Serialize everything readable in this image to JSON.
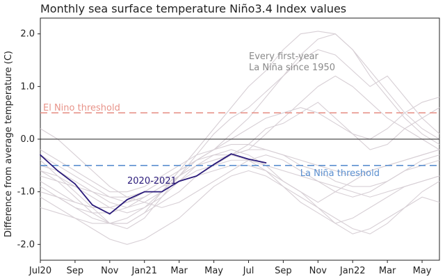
{
  "chart_data": {
    "type": "line",
    "title": "Monthly sea surface temperature Niño3.4 Index values",
    "ylabel": "Difference from average temperature (C)",
    "xlabel": "",
    "ylim": [
      -2.3,
      2.3
    ],
    "x_range": [
      0,
      23
    ],
    "y_ticks": [
      {
        "value": 2.0,
        "label": "2.0"
      },
      {
        "value": 1.0,
        "label": "1.0"
      },
      {
        "value": 0.0,
        "label": "0.0"
      },
      {
        "value": -1.0,
        "label": "-1.0"
      },
      {
        "value": -2.0,
        "label": "-2.0"
      }
    ],
    "x_ticks": [
      {
        "value": 0,
        "label": "Jul20"
      },
      {
        "value": 2,
        "label": "Sep"
      },
      {
        "value": 4,
        "label": "Nov"
      },
      {
        "value": 6,
        "label": "Jan21"
      },
      {
        "value": 8,
        "label": "Mar"
      },
      {
        "value": 10,
        "label": "May"
      },
      {
        "value": 12,
        "label": "Jul"
      },
      {
        "value": 14,
        "label": "Sep"
      },
      {
        "value": 16,
        "label": "Nov"
      },
      {
        "value": 18,
        "label": "Jan22"
      },
      {
        "value": 20,
        "label": "Mar"
      },
      {
        "value": 22,
        "label": "May"
      }
    ],
    "thresholds": [
      {
        "name": "El Nino threshold",
        "label": "El Nino threshold",
        "value": 0.5,
        "color": "#e8948a"
      },
      {
        "name": "La Niña threshold",
        "label": "La Niña threshold",
        "value": -0.5,
        "color": "#5b8fcf"
      }
    ],
    "annotations": {
      "background_note": [
        "Every first-year",
        "La Niña since 1950"
      ],
      "highlight_label": "2020-2021"
    },
    "highlight_series": {
      "name": "2020-2021",
      "color": "#2a1a7a",
      "values": [
        -0.3,
        -0.6,
        -0.85,
        -1.25,
        -1.42,
        -1.15,
        -1.0,
        -1.0,
        -0.8,
        -0.7,
        -0.48,
        -0.28,
        -0.38,
        -0.45
      ]
    },
    "background_series_color": "#d7cfd5",
    "background_series": [
      {
        "name": "bg-1",
        "values": [
          -1.0,
          -1.1,
          -1.3,
          -1.5,
          -1.6,
          -1.6,
          -1.4,
          -1.0,
          -0.6,
          -0.2,
          0.2,
          0.6,
          1.0,
          1.3,
          1.7,
          2.0,
          2.05,
          2.0,
          1.7,
          1.3,
          0.9,
          0.5,
          0.2,
          0.0
        ]
      },
      {
        "name": "bg-2",
        "values": [
          -0.4,
          -0.7,
          -1.0,
          -1.3,
          -1.6,
          -1.7,
          -1.5,
          -1.1,
          -0.7,
          -0.3,
          0.1,
          0.4,
          0.6,
          0.9,
          1.2,
          1.5,
          1.7,
          1.6,
          1.3,
          1.0,
          1.2,
          0.8,
          0.4,
          0.1
        ]
      },
      {
        "name": "bg-3",
        "values": [
          -0.6,
          -0.8,
          -1.1,
          -1.4,
          -1.6,
          -1.6,
          -1.4,
          -1.2,
          -1.0,
          -0.7,
          -0.5,
          -0.3,
          -0.2,
          0.1,
          0.4,
          0.7,
          1.0,
          1.2,
          1.0,
          0.7,
          0.4,
          0.2,
          0.0,
          -0.2
        ]
      },
      {
        "name": "bg-4",
        "values": [
          -0.9,
          -1.1,
          -1.3,
          -1.4,
          -1.4,
          -1.3,
          -1.1,
          -0.9,
          -0.7,
          -0.5,
          -0.4,
          -0.3,
          -0.1,
          0.2,
          0.3,
          0.5,
          0.7,
          0.4,
          0.1,
          -0.2,
          -0.1,
          0.2,
          0.4,
          0.6
        ]
      },
      {
        "name": "bg-5",
        "values": [
          -0.7,
          -0.8,
          -0.9,
          -1.1,
          -1.3,
          -1.4,
          -1.3,
          -1.1,
          -0.8,
          -0.5,
          -0.3,
          -0.2,
          -0.3,
          -0.5,
          -0.8,
          -1.0,
          -1.2,
          -1.0,
          -0.8,
          -0.6,
          -0.5,
          -0.4,
          -0.3,
          -0.2
        ]
      },
      {
        "name": "bg-6",
        "values": [
          -1.1,
          -1.3,
          -1.5,
          -1.7,
          -1.9,
          -2.0,
          -1.9,
          -1.7,
          -1.5,
          -1.2,
          -0.9,
          -0.7,
          -0.6,
          -0.7,
          -0.9,
          -1.1,
          -1.3,
          -1.5,
          -1.7,
          -1.8,
          -1.6,
          -1.3,
          -1.0,
          -0.8
        ]
      },
      {
        "name": "bg-7",
        "values": [
          -0.5,
          -0.6,
          -0.8,
          -1.0,
          -1.2,
          -1.3,
          -1.2,
          -1.0,
          -0.8,
          -0.6,
          -0.5,
          -0.4,
          -0.4,
          -0.6,
          -0.9,
          -1.2,
          -1.4,
          -1.6,
          -1.5,
          -1.3,
          -1.1,
          -0.9,
          -0.8,
          -0.7
        ]
      },
      {
        "name": "bg-8",
        "values": [
          -0.2,
          -0.4,
          -0.6,
          -0.8,
          -1.0,
          -1.0,
          -0.9,
          -0.7,
          -0.5,
          -0.3,
          -0.2,
          -0.1,
          -0.1,
          -0.2,
          -0.3,
          -0.5,
          -0.6,
          -0.8,
          -0.9,
          -0.9,
          -0.8,
          -0.6,
          -0.5,
          -0.4
        ]
      },
      {
        "name": "bg-9",
        "values": [
          0.2,
          0.0,
          -0.3,
          -0.6,
          -0.9,
          -1.1,
          -1.2,
          -1.3,
          -1.2,
          -1.0,
          -0.8,
          -0.6,
          -0.4,
          -0.3,
          -0.4,
          -0.6,
          -0.8,
          -1.0,
          -1.1,
          -1.0,
          -0.8,
          -0.6,
          -0.4,
          -0.3
        ]
      },
      {
        "name": "bg-10",
        "values": [
          -0.8,
          -1.0,
          -1.2,
          -1.3,
          -1.3,
          -1.2,
          -1.0,
          -0.8,
          -0.6,
          -0.4,
          -0.3,
          -0.3,
          -0.4,
          -0.5,
          -0.6,
          -0.7,
          -0.8,
          -0.9,
          -1.0,
          -1.1,
          -1.0,
          -0.9,
          -0.8,
          -0.7
        ]
      },
      {
        "name": "bg-11",
        "values": [
          -1.3,
          -1.4,
          -1.5,
          -1.6,
          -1.6,
          -1.5,
          -1.3,
          -1.0,
          -0.7,
          -0.5,
          -0.4,
          -0.3,
          -0.2,
          -0.2,
          -0.3,
          -0.4,
          -0.5,
          -0.6,
          -0.7,
          -0.6,
          -0.5,
          -0.4,
          -0.3,
          -0.2
        ]
      },
      {
        "name": "bg-12",
        "values": [
          -0.3,
          -0.5,
          -0.7,
          -0.9,
          -1.1,
          -1.2,
          -1.1,
          -0.9,
          -0.7,
          -0.4,
          -0.2,
          0.0,
          0.2,
          0.4,
          0.5,
          0.6,
          0.5,
          0.3,
          0.1,
          0.0,
          0.2,
          0.5,
          0.7,
          0.8
        ]
      },
      {
        "name": "bg-13",
        "values": [
          -1.0,
          -1.1,
          -1.2,
          -1.3,
          -1.3,
          -1.2,
          -1.1,
          -0.9,
          -0.8,
          -0.7,
          -0.6,
          -0.5,
          -0.5,
          -0.6,
          -0.8,
          -1.0,
          -1.3,
          -1.6,
          -1.8,
          -1.7,
          -1.5,
          -1.3,
          -1.1,
          -1.2
        ]
      },
      {
        "name": "bg-14",
        "values": [
          -0.6,
          -0.7,
          -0.9,
          -1.0,
          -1.1,
          -1.1,
          -1.0,
          -0.8,
          -0.6,
          -0.4,
          -0.2,
          0.1,
          0.4,
          0.8,
          1.2,
          1.6,
          1.9,
          2.0,
          1.7,
          1.2,
          0.8,
          0.4,
          0.1,
          -0.1
        ]
      }
    ]
  }
}
